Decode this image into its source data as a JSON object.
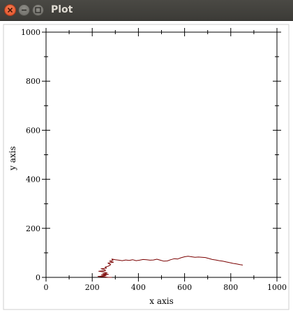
{
  "window": {
    "title": "Plot"
  },
  "chart_data": {
    "type": "line",
    "title": "",
    "xlabel": "x axis",
    "ylabel": "y axis",
    "xlim": [
      0,
      1000
    ],
    "ylim": [
      0,
      1000
    ],
    "x_ticks": [
      0,
      200,
      400,
      600,
      800,
      1000
    ],
    "y_ticks": [
      0,
      200,
      400,
      600,
      800,
      1000
    ],
    "grid": false,
    "series": [
      {
        "color": "#7a0000",
        "points": [
          [
            285,
            0
          ],
          [
            270,
            0
          ],
          [
            250,
            2
          ],
          [
            225,
            4
          ],
          [
            255,
            6
          ],
          [
            260,
            8
          ],
          [
            240,
            10
          ],
          [
            270,
            12
          ],
          [
            245,
            15
          ],
          [
            265,
            18
          ],
          [
            250,
            22
          ],
          [
            228,
            25
          ],
          [
            258,
            28
          ],
          [
            252,
            32
          ],
          [
            238,
            35
          ],
          [
            262,
            38
          ],
          [
            256,
            42
          ],
          [
            270,
            46
          ],
          [
            280,
            52
          ],
          [
            268,
            58
          ],
          [
            292,
            62
          ],
          [
            275,
            66
          ],
          [
            290,
            70
          ],
          [
            285,
            75
          ],
          [
            300,
            72
          ],
          [
            315,
            70
          ],
          [
            330,
            68
          ],
          [
            345,
            71
          ],
          [
            360,
            69
          ],
          [
            375,
            72
          ],
          [
            390,
            68
          ],
          [
            405,
            70
          ],
          [
            420,
            73
          ],
          [
            435,
            72
          ],
          [
            450,
            70
          ],
          [
            465,
            71
          ],
          [
            480,
            74
          ],
          [
            495,
            70
          ],
          [
            510,
            66
          ],
          [
            525,
            67
          ],
          [
            540,
            72
          ],
          [
            555,
            76
          ],
          [
            570,
            75
          ],
          [
            585,
            80
          ],
          [
            600,
            84
          ],
          [
            615,
            86
          ],
          [
            630,
            84
          ],
          [
            645,
            82
          ],
          [
            660,
            83
          ],
          [
            675,
            82
          ],
          [
            690,
            81
          ],
          [
            705,
            77
          ],
          [
            720,
            73
          ],
          [
            735,
            71
          ],
          [
            750,
            68
          ],
          [
            765,
            66
          ],
          [
            780,
            63
          ],
          [
            795,
            60
          ],
          [
            810,
            57
          ],
          [
            825,
            55
          ],
          [
            840,
            52
          ],
          [
            852,
            50
          ]
        ]
      }
    ]
  }
}
